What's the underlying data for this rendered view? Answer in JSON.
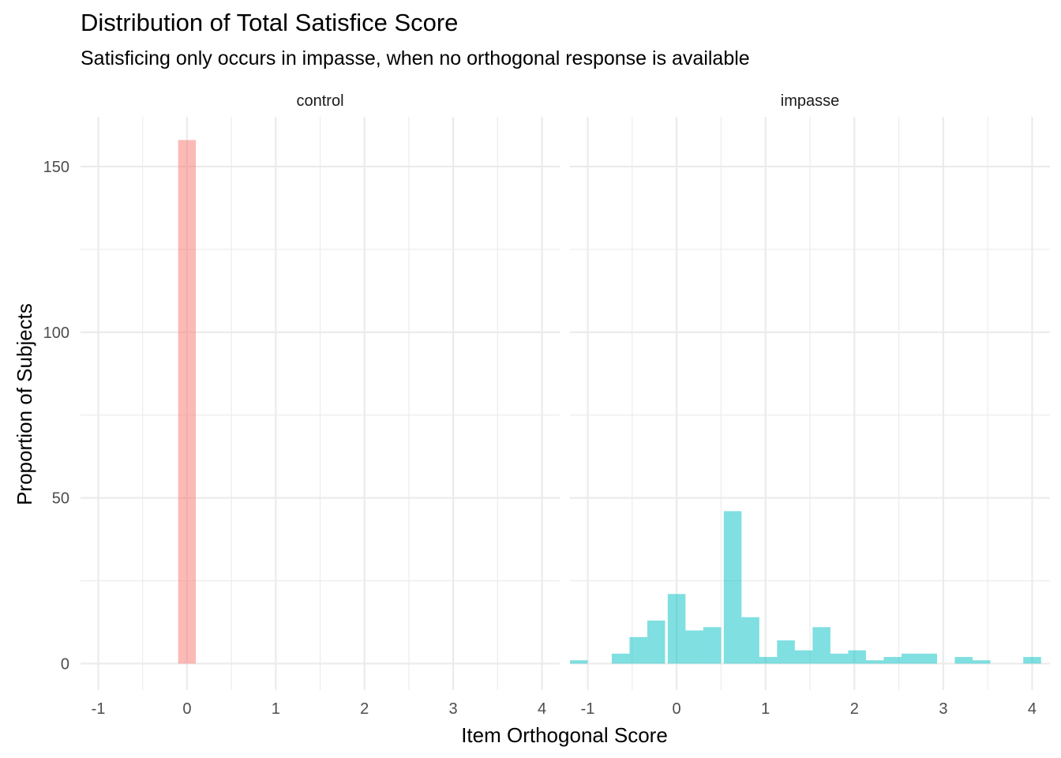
{
  "chart_data": {
    "type": "bar",
    "title": "Distribution of Total Satisfice Score",
    "subtitle": "Satisficing only occurs in impasse, when no orthogonal response is available",
    "xlabel": "Item Orthogonal Score",
    "ylabel": "Proportion of Subjects",
    "xlim": [
      -1.2,
      4.2
    ],
    "ylim": [
      -8,
      165
    ],
    "x_ticks": [
      -1,
      0,
      1,
      2,
      3,
      4
    ],
    "x_tick_labels": [
      "-1",
      "0",
      "1",
      "2",
      "3",
      "4"
    ],
    "y_ticks": [
      0,
      50,
      100,
      150
    ],
    "y_tick_labels": [
      "0",
      "50",
      "100",
      "150"
    ],
    "grid": true,
    "legend": "none",
    "bin_width": 0.2,
    "panels": [
      {
        "name": "control",
        "color": "#F8766D",
        "bins": [
          {
            "x": 0.0,
            "count": 158
          }
        ]
      },
      {
        "name": "impasse",
        "color": "#00BFC4",
        "bins": [
          {
            "x": -1.1,
            "count": 1
          },
          {
            "x": -0.63,
            "count": 3
          },
          {
            "x": -0.43,
            "count": 8
          },
          {
            "x": -0.23,
            "count": 13
          },
          {
            "x": 0.0,
            "count": 21
          },
          {
            "x": 0.2,
            "count": 10
          },
          {
            "x": 0.4,
            "count": 11
          },
          {
            "x": 0.63,
            "count": 46
          },
          {
            "x": 0.83,
            "count": 14
          },
          {
            "x": 1.03,
            "count": 2
          },
          {
            "x": 1.23,
            "count": 7
          },
          {
            "x": 1.43,
            "count": 4
          },
          {
            "x": 1.63,
            "count": 11
          },
          {
            "x": 1.83,
            "count": 3
          },
          {
            "x": 2.03,
            "count": 4
          },
          {
            "x": 2.23,
            "count": 1
          },
          {
            "x": 2.43,
            "count": 2
          },
          {
            "x": 2.63,
            "count": 3
          },
          {
            "x": 2.83,
            "count": 3
          },
          {
            "x": 3.03,
            "count": 0
          },
          {
            "x": 3.23,
            "count": 2
          },
          {
            "x": 3.43,
            "count": 1
          },
          {
            "x": 3.63,
            "count": 0
          },
          {
            "x": 3.83,
            "count": 0
          },
          {
            "x": 4.0,
            "count": 2
          }
        ]
      }
    ]
  }
}
